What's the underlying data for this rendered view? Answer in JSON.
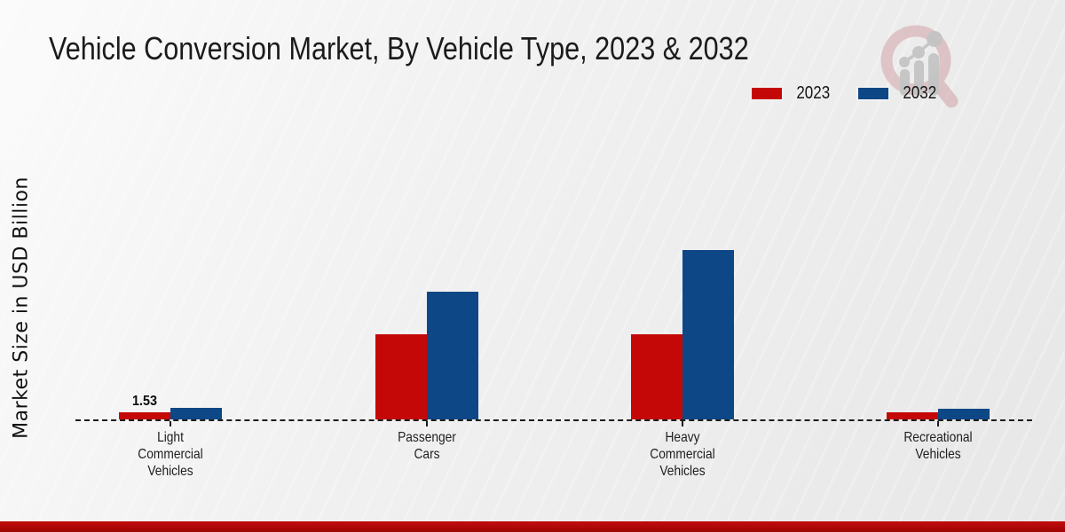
{
  "chart_data": {
    "type": "bar",
    "title": "Vehicle Conversion Market, By Vehicle Type, 2023 & 2032",
    "xlabel": "",
    "ylabel": "Market Size in USD Billion",
    "unit": "USD Billion",
    "categories": [
      "Light Commercial Vehicles",
      "Passenger Cars",
      "Heavy Commercial Vehicles",
      "Recreational Vehicles"
    ],
    "categories_wrapped": [
      [
        "Light",
        "Commercial",
        "Vehicles"
      ],
      [
        "Passenger",
        "Cars"
      ],
      [
        "Heavy",
        "Commercial",
        "Vehicles"
      ],
      [
        "Recreational",
        "Vehicles"
      ]
    ],
    "series": [
      {
        "name": "2023",
        "color": "#c40808",
        "values": [
          1.53,
          18.4,
          18.4,
          1.5
        ]
      },
      {
        "name": "2032",
        "color": "#0d4786",
        "values": [
          2.5,
          27.6,
          36.6,
          2.3
        ]
      }
    ],
    "value_labels": [
      {
        "series_index": 0,
        "category_index": 0,
        "text": "1.53"
      }
    ],
    "ylim": [
      0,
      40
    ],
    "grid": false,
    "y_axis_ticks_visible": false,
    "baseline_style": "dashed",
    "legend_position": "top-right"
  },
  "watermark": {
    "name": "market-research-magnifier-logo"
  },
  "footer": {
    "style": "red-strip"
  },
  "colors": {
    "series_2023": "#c40808",
    "series_2032": "#0d4786",
    "baseline": "#1d1d1d",
    "footer_strip": "#b00707",
    "background": "#ededed"
  }
}
